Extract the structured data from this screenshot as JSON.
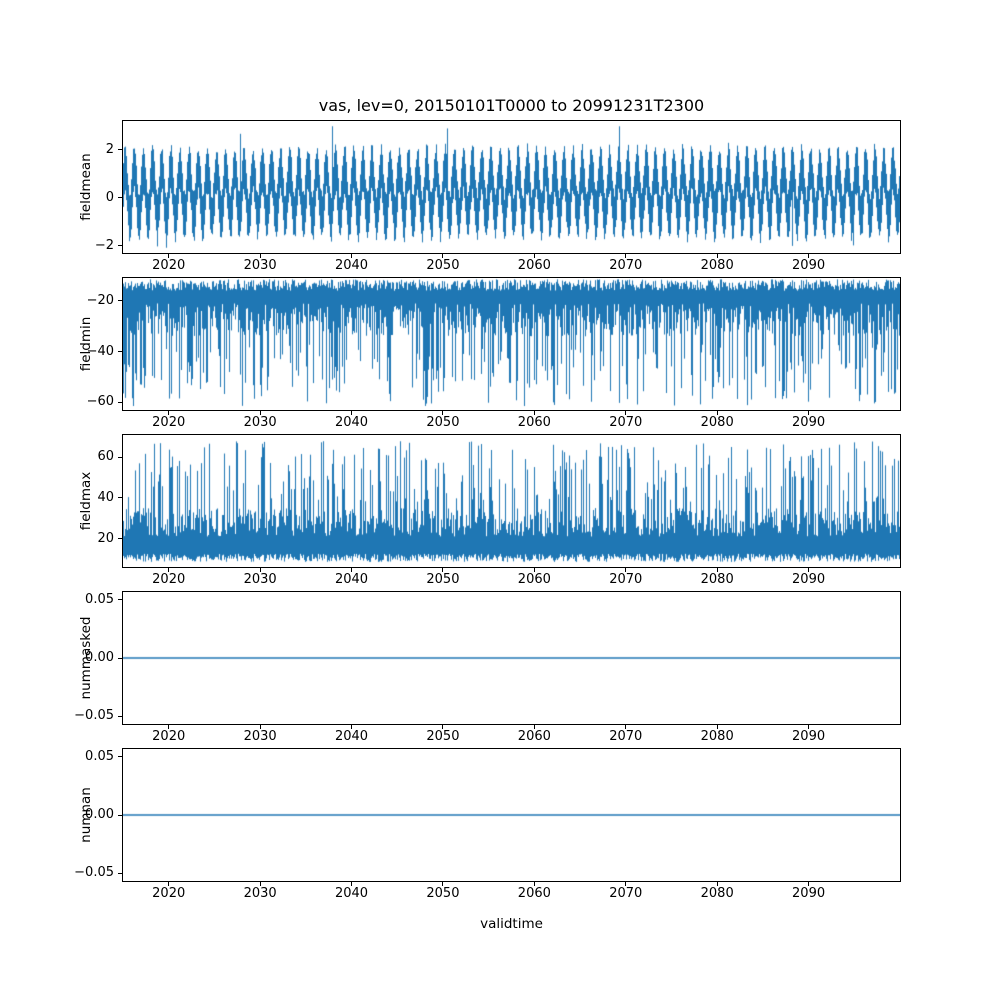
{
  "figure": {
    "title": "vas, lev=0, 20150101T0000 to 20991231T2300",
    "xlabel": "validtime",
    "background": "#ffffff",
    "line_color": "#1f77b4",
    "axis_color": "#000000"
  },
  "x_axis": {
    "lim": [
      2015,
      2100
    ],
    "ticks": [
      {
        "value": 2020,
        "label": "2020"
      },
      {
        "value": 2030,
        "label": "2030"
      },
      {
        "value": 2040,
        "label": "2040"
      },
      {
        "value": 2050,
        "label": "2050"
      },
      {
        "value": 2060,
        "label": "2060"
      },
      {
        "value": 2070,
        "label": "2070"
      },
      {
        "value": 2080,
        "label": "2080"
      },
      {
        "value": 2090,
        "label": "2090"
      }
    ]
  },
  "chart_data": [
    {
      "type": "line",
      "name": "fieldmean",
      "ylabel": "fieldmean",
      "xlim": [
        2015,
        2100
      ],
      "ylim": [
        -2.3,
        3.2
      ],
      "yticks": [
        {
          "value": -2,
          "label": "−2"
        },
        {
          "value": 0,
          "label": "0"
        },
        {
          "value": 2,
          "label": "2"
        }
      ],
      "summary": {
        "description": "dense hourly mean field with annual cycle plus noise",
        "observed_min": -2.1,
        "observed_max": 3.05,
        "annual_cycle_center": 0.2,
        "annual_cycle_amplitude": 1.0,
        "shortterm_halfspread": [
          0.7,
          1.1
        ]
      },
      "render": {
        "kind": "seasonal-band",
        "center": 0.2,
        "amplitude": 1.0,
        "halfspread": [
          0.7,
          1.1
        ],
        "spike_up_prob": 0.002,
        "spike_up": [
          2.6,
          3.05
        ],
        "spike_down_prob": 0.003,
        "spike_down": [
          -2.1,
          -1.95
        ],
        "seed": 11
      }
    },
    {
      "type": "line",
      "name": "fieldmin",
      "ylabel": "fieldmin",
      "xlim": [
        2015,
        2100
      ],
      "ylim": [
        -63,
        -11
      ],
      "yticks": [
        {
          "value": -20,
          "label": "−20"
        },
        {
          "value": -40,
          "label": "−40"
        },
        {
          "value": -60,
          "label": "−60"
        }
      ],
      "summary": {
        "description": "dense band near -12 to -30 with frequent downward spikes to about -60",
        "observed_min": -61.5,
        "observed_max": -11.5,
        "typical_band": [
          -30,
          -12
        ]
      },
      "render": {
        "kind": "band-spikes",
        "direction": "down",
        "band_top": [
          -16,
          -11.5
        ],
        "band_bottom": [
          -34,
          -21
        ],
        "spike_prob": 0.3,
        "spike": [
          -61.5,
          -37
        ],
        "seed": 22
      }
    },
    {
      "type": "line",
      "name": "fieldmax",
      "ylabel": "fieldmax",
      "xlim": [
        2015,
        2100
      ],
      "ylim": [
        6,
        71
      ],
      "yticks": [
        {
          "value": 20,
          "label": "20"
        },
        {
          "value": 40,
          "label": "40"
        },
        {
          "value": 60,
          "label": "60"
        }
      ],
      "summary": {
        "description": "dense band near 9 to 30 with frequent upward spikes to about 68",
        "observed_min": 8.5,
        "observed_max": 68,
        "typical_band": [
          9,
          30
        ]
      },
      "render": {
        "kind": "band-spikes",
        "direction": "up",
        "band_top": [
          21,
          35
        ],
        "band_bottom": [
          8.5,
          12.5
        ],
        "spike_prob": 0.33,
        "spike": [
          38,
          68
        ],
        "seed": 33
      }
    },
    {
      "type": "line",
      "name": "nummasked",
      "ylabel": "nummasked",
      "xlim": [
        2015,
        2100
      ],
      "ylim": [
        -0.0565,
        0.0565
      ],
      "yticks": [
        {
          "value": -0.05,
          "label": "−0.05"
        },
        {
          "value": 0,
          "label": "0.00"
        },
        {
          "value": 0.05,
          "label": "0.05"
        }
      ],
      "summary": {
        "description": "constant zero line",
        "constant_value": 0
      },
      "render": {
        "kind": "constant",
        "value": 0,
        "linewidth": 1.5,
        "seed": 44
      }
    },
    {
      "type": "line",
      "name": "numnan",
      "ylabel": "numnan",
      "xlim": [
        2015,
        2100
      ],
      "ylim": [
        -0.0565,
        0.0565
      ],
      "yticks": [
        {
          "value": -0.05,
          "label": "−0.05"
        },
        {
          "value": 0,
          "label": "0.00"
        },
        {
          "value": 0.05,
          "label": "0.05"
        }
      ],
      "summary": {
        "description": "constant zero line",
        "constant_value": 0
      },
      "render": {
        "kind": "constant",
        "value": 0,
        "linewidth": 1.5,
        "seed": 55
      }
    }
  ]
}
